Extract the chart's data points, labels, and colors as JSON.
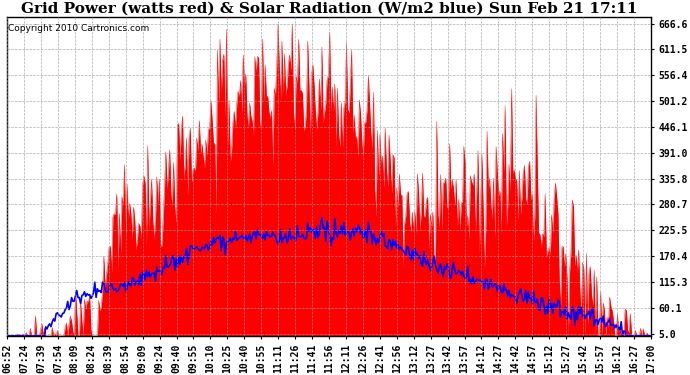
{
  "title": "Grid Power (watts red) & Solar Radiation (W/m2 blue) Sun Feb 21 17:11",
  "copyright": "Copyright 2010 Cartronics.com",
  "yticks": [
    5.0,
    60.1,
    115.3,
    170.4,
    225.5,
    280.7,
    335.8,
    391.0,
    446.1,
    501.2,
    556.4,
    611.5,
    666.6
  ],
  "ylim": [
    0,
    680
  ],
  "xlabels": [
    "06:52",
    "07:24",
    "07:39",
    "07:54",
    "08:09",
    "08:24",
    "08:39",
    "08:54",
    "09:09",
    "09:24",
    "09:40",
    "09:55",
    "10:10",
    "10:25",
    "10:40",
    "10:55",
    "11:11",
    "11:26",
    "11:41",
    "11:56",
    "12:11",
    "12:26",
    "12:41",
    "12:56",
    "13:12",
    "13:27",
    "13:42",
    "13:57",
    "14:12",
    "14:27",
    "14:42",
    "14:57",
    "15:12",
    "15:27",
    "15:42",
    "15:57",
    "16:12",
    "16:27",
    "17:00"
  ],
  "red_fill_color": "#FF0000",
  "blue_line_color": "#0000FF",
  "background_color": "#FFFFFF",
  "grid_color": "#999999",
  "title_fontsize": 11,
  "tick_fontsize": 7,
  "copyright_fontsize": 6.5
}
